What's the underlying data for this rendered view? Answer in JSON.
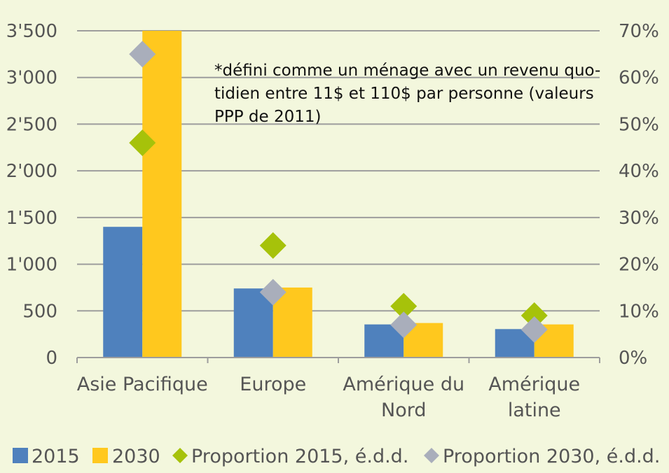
{
  "chart_data": {
    "type": "bar",
    "categories": [
      [
        "Asie Pacifique"
      ],
      [
        "Europe"
      ],
      [
        "Amérique du",
        "Nord"
      ],
      [
        "Amérique",
        "latine"
      ]
    ],
    "series": [
      {
        "name": "2015",
        "kind": "bar",
        "axis": "left",
        "color": "#4f81bd",
        "values": [
          1400,
          740,
          355,
          305
        ]
      },
      {
        "name": "2030",
        "kind": "bar",
        "axis": "left",
        "color": "#ffc81e",
        "values": [
          3500,
          750,
          370,
          355
        ]
      },
      {
        "name": "Proportion 2015, é.d.d.",
        "kind": "marker",
        "axis": "right",
        "color": "#a6c20a",
        "values": [
          46,
          24,
          11,
          9
        ]
      },
      {
        "name": "Proportion 2030, é.d.d.",
        "kind": "marker",
        "axis": "right",
        "color": "#a9aebb",
        "values": [
          65,
          14,
          7,
          6
        ]
      }
    ],
    "left_axis": {
      "min": 0,
      "max": 3500,
      "ticks": [
        0,
        500,
        1000,
        1500,
        2000,
        2500,
        3000,
        3500
      ],
      "tick_labels": [
        "0",
        "500",
        "1'000",
        "1'500",
        "2'000",
        "2'500",
        "3'000",
        "3'500"
      ]
    },
    "right_axis": {
      "min": 0,
      "max": 70,
      "ticks": [
        0,
        10,
        20,
        30,
        40,
        50,
        60,
        70
      ],
      "tick_labels": [
        "0%",
        "10%",
        "20%",
        "30%",
        "40%",
        "50%",
        "60%",
        "70%"
      ]
    },
    "annotation": [
      "*défini comme un ménage avec un revenu quo-",
      "tidien entre 11$ et 110$ par personne (valeurs",
      "PPP de 2011)"
    ],
    "grid": true,
    "legend_position": "bottom"
  }
}
